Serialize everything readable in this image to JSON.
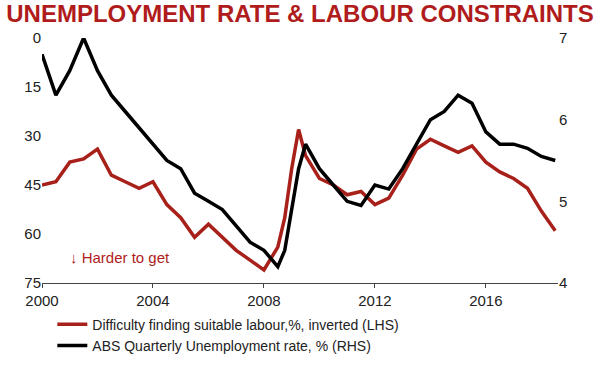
{
  "chart_data": {
    "type": "line",
    "title": "UNEMPLOYMENT RATE & LABOUR CONSTRAINTS",
    "annotation": "↓ Harder to get",
    "x": [
      2000,
      2000.5,
      2001,
      2001.5,
      2002,
      2002.5,
      2003,
      2003.5,
      2004,
      2004.5,
      2005,
      2005.5,
      2006,
      2006.5,
      2007,
      2007.5,
      2008,
      2008.5,
      2008.75,
      2009,
      2009.25,
      2009.5,
      2010,
      2010.5,
      2011,
      2011.5,
      2012,
      2012.5,
      2013,
      2013.5,
      2014,
      2014.5,
      2015,
      2015.5,
      2016,
      2016.5,
      2017,
      2017.5,
      2018,
      2018.5
    ],
    "series": [
      {
        "name": "Difficulty finding suitable labour,%, inverted (LHS)",
        "color": "#a8201a",
        "values": [
          45,
          44,
          38,
          37,
          34,
          42,
          44,
          46,
          44,
          51,
          55,
          61,
          57,
          61,
          65,
          68,
          71,
          64,
          55,
          40,
          28,
          36,
          43,
          45,
          48,
          47,
          51,
          49,
          42,
          34,
          31,
          33,
          35,
          33,
          38,
          41,
          43,
          46,
          53,
          59
        ]
      },
      {
        "name": "ABS Quarterly Unemployment rate, % (RHS)",
        "color": "#000000",
        "axis": "y2",
        "values": [
          6.8,
          6.3,
          6.6,
          7.0,
          6.6,
          6.3,
          6.1,
          5.9,
          5.7,
          5.5,
          5.4,
          5.1,
          5.0,
          4.9,
          4.7,
          4.5,
          4.4,
          4.2,
          4.4,
          4.9,
          5.4,
          5.7,
          5.4,
          5.2,
          5.0,
          4.95,
          5.2,
          5.15,
          5.4,
          5.7,
          6.0,
          6.1,
          6.3,
          6.2,
          5.85,
          5.7,
          5.7,
          5.65,
          5.55,
          5.5
        ]
      }
    ],
    "xlim": [
      2000,
      2018.6
    ],
    "xticks": [
      2000,
      2004,
      2008,
      2012,
      2016
    ],
    "ylim": [
      75,
      0
    ],
    "yticks": [
      0,
      15,
      30,
      45,
      60,
      75
    ],
    "y2lim": [
      4,
      7
    ],
    "y2ticks": [
      4,
      5,
      6,
      7
    ],
    "grid": false,
    "legend": "bottom"
  }
}
